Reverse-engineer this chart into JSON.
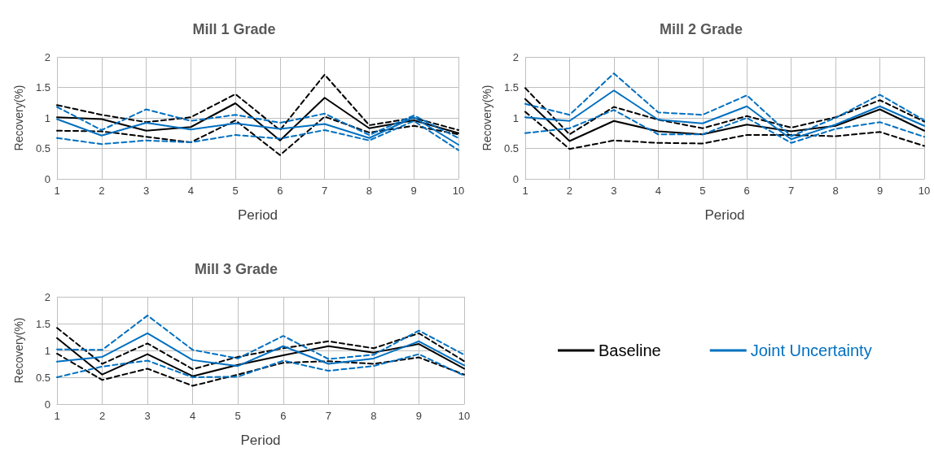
{
  "chart_data": [
    {
      "type": "line",
      "title": "Mill 1 Grade",
      "xlabel": "Period",
      "ylabel": "Recovery(%)",
      "x": [
        1,
        2,
        3,
        4,
        5,
        6,
        7,
        8,
        9,
        10
      ],
      "xlim": [
        1,
        10
      ],
      "xticks": [
        1,
        2,
        3,
        4,
        5,
        6,
        7,
        8,
        9,
        10
      ],
      "ylim": [
        0,
        2
      ],
      "yticks": [
        0,
        0.5,
        1,
        1.5,
        2
      ],
      "grid": true,
      "marker": "none",
      "legend": false,
      "series": [
        {
          "color": "#000000",
          "line_style": "dashed",
          "values": [
            1.21,
            1.05,
            0.93,
            1.01,
            1.39,
            0.8,
            1.71,
            0.88,
            1.0,
            0.8
          ]
        },
        {
          "color": "#000000",
          "line_style": "solid",
          "values": [
            1.01,
            0.98,
            0.79,
            0.85,
            1.24,
            0.63,
            1.33,
            0.83,
            0.96,
            0.75
          ]
        },
        {
          "color": "#000000",
          "line_style": "dashed",
          "values": [
            0.79,
            0.78,
            0.69,
            0.6,
            0.96,
            0.39,
            1.02,
            0.76,
            0.87,
            0.73
          ]
        },
        {
          "color": "#0070c0",
          "line_style": "dashed",
          "values": [
            1.18,
            0.8,
            1.14,
            0.95,
            1.05,
            0.92,
            1.07,
            0.72,
            1.04,
            0.67
          ]
        },
        {
          "color": "#0070c0",
          "line_style": "solid",
          "values": [
            0.98,
            0.71,
            0.92,
            0.81,
            0.91,
            0.82,
            0.9,
            0.67,
            1.01,
            0.56
          ]
        },
        {
          "color": "#0070c0",
          "line_style": "dashed",
          "values": [
            0.67,
            0.57,
            0.63,
            0.6,
            0.72,
            0.66,
            0.8,
            0.63,
            0.95,
            0.47
          ]
        }
      ]
    },
    {
      "type": "line",
      "title": "Mill 2 Grade",
      "xlabel": "Period",
      "ylabel": "Recovery(%)",
      "x": [
        1,
        2,
        3,
        4,
        5,
        6,
        7,
        8,
        9,
        10
      ],
      "xlim": [
        1,
        10
      ],
      "xticks": [
        1,
        2,
        3,
        4,
        5,
        6,
        7,
        8,
        9,
        10
      ],
      "ylim": [
        0,
        2
      ],
      "yticks": [
        0,
        0.5,
        1,
        1.5,
        2
      ],
      "grid": true,
      "marker": "none",
      "legend": false,
      "series": [
        {
          "color": "#000000",
          "line_style": "dashed",
          "values": [
            1.49,
            0.73,
            1.18,
            0.97,
            0.83,
            1.03,
            0.84,
            1.01,
            1.29,
            0.94
          ]
        },
        {
          "color": "#000000",
          "line_style": "solid",
          "values": [
            1.31,
            0.62,
            0.95,
            0.78,
            0.73,
            0.89,
            0.78,
            0.87,
            1.14,
            0.79
          ]
        },
        {
          "color": "#000000",
          "line_style": "dashed",
          "values": [
            1.1,
            0.49,
            0.63,
            0.59,
            0.58,
            0.72,
            0.72,
            0.7,
            0.77,
            0.54
          ]
        },
        {
          "color": "#0070c0",
          "line_style": "dashed",
          "values": [
            1.23,
            1.05,
            1.73,
            1.09,
            1.05,
            1.37,
            0.7,
            1.0,
            1.38,
            0.96
          ]
        },
        {
          "color": "#0070c0",
          "line_style": "solid",
          "values": [
            1.01,
            0.95,
            1.45,
            0.97,
            0.91,
            1.19,
            0.65,
            0.89,
            1.19,
            0.87
          ]
        },
        {
          "color": "#0070c0",
          "line_style": "dashed",
          "values": [
            0.75,
            0.83,
            1.13,
            0.73,
            0.73,
            1.0,
            0.59,
            0.82,
            0.93,
            0.69
          ]
        }
      ]
    },
    {
      "type": "line",
      "title": "Mill 3 Grade",
      "xlabel": "Period",
      "ylabel": "Recovery(%)",
      "x": [
        1,
        2,
        3,
        4,
        5,
        6,
        7,
        8,
        9,
        10
      ],
      "xlim": [
        1,
        10
      ],
      "xticks": [
        1,
        2,
        3,
        4,
        5,
        6,
        7,
        8,
        9,
        10
      ],
      "ylim": [
        0,
        2
      ],
      "yticks": [
        0,
        0.5,
        1,
        1.5,
        2
      ],
      "grid": true,
      "marker": "none",
      "legend": "right",
      "series": [
        {
          "color": "#000000",
          "line_style": "dashed",
          "values": [
            1.42,
            0.75,
            1.13,
            0.65,
            0.88,
            1.04,
            1.17,
            1.04,
            1.32,
            0.8
          ]
        },
        {
          "name": "Baseline",
          "color": "#000000",
          "line_style": "solid",
          "values": [
            1.23,
            0.55,
            0.93,
            0.52,
            0.73,
            0.91,
            1.08,
            0.96,
            1.12,
            0.66
          ]
        },
        {
          "color": "#000000",
          "line_style": "dashed",
          "values": [
            0.94,
            0.45,
            0.66,
            0.34,
            0.55,
            0.77,
            0.8,
            0.75,
            0.87,
            0.55
          ]
        },
        {
          "color": "#0070c0",
          "line_style": "dashed",
          "values": [
            1.02,
            1.01,
            1.65,
            1.01,
            0.85,
            1.27,
            0.84,
            0.92,
            1.37,
            0.92
          ]
        },
        {
          "name": "Joint Uncertainty",
          "color": "#0070c0",
          "line_style": "solid",
          "values": [
            0.79,
            0.88,
            1.32,
            0.82,
            0.71,
            1.08,
            0.75,
            0.85,
            1.17,
            0.72
          ]
        },
        {
          "color": "#0070c0",
          "line_style": "dashed",
          "values": [
            0.5,
            0.7,
            0.81,
            0.5,
            0.51,
            0.81,
            0.62,
            0.71,
            0.93,
            0.53
          ]
        }
      ]
    }
  ]
}
